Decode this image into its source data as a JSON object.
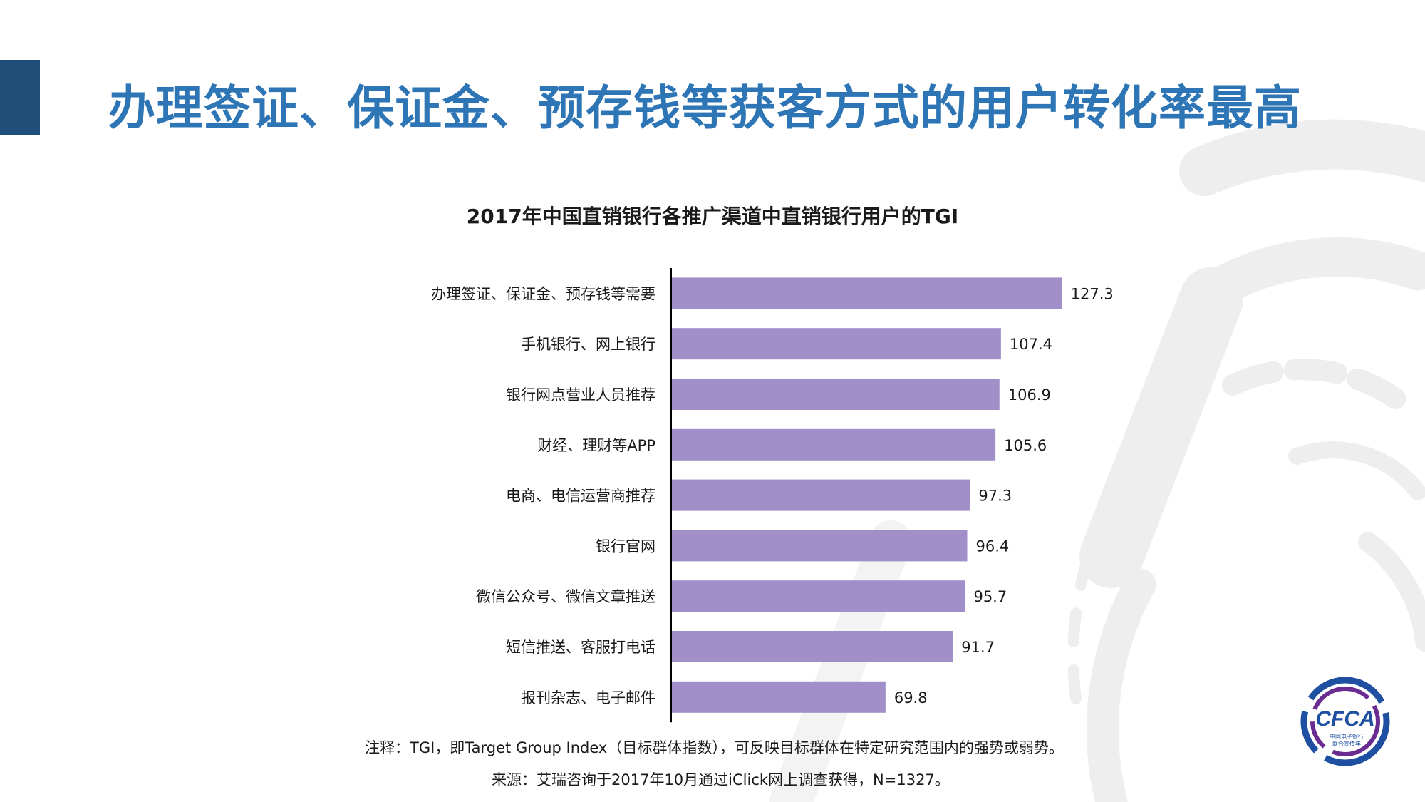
{
  "slide": {
    "title": "办理签证、保证金、预存钱等获客方式的用户转化率最高"
  },
  "chart_data": {
    "type": "bar",
    "orientation": "horizontal",
    "title": "2017年中国直销银行各推广渠道中直销银行用户的TGI",
    "categories": [
      "办理签证、保证金、预存钱等需要",
      "手机银行、网上银行",
      "银行网点营业人员推荐",
      "财经、理财等APP",
      "电商、电信运营商推荐",
      "银行官网",
      "微信公众号、微信文章推送",
      "短信推送、客服打电话",
      "报刊杂志、电子邮件"
    ],
    "values": [
      127.3,
      107.4,
      106.9,
      105.6,
      97.3,
      96.4,
      95.7,
      91.7,
      69.8
    ],
    "value_labels": [
      "127.3",
      "107.4",
      "106.9",
      "105.6",
      "97.3",
      "96.4",
      "95.7",
      "91.7",
      "69.8"
    ],
    "xlim": [
      0,
      140
    ],
    "bar_color": "#a08fc8",
    "grid": false,
    "axis_line": true
  },
  "footer": {
    "note": "注释：TGI，即Target Group Index（目标群体指数），可反映目标群体在特定研究范围内的强势或弱势。",
    "source": "来源：艾瑞咨询于2017年10月通过iClick网上调查获得，N=1327。"
  },
  "logo": {
    "text": "CFCA",
    "subtext_1": "中国电子银行",
    "subtext_2": "联合宣传年",
    "ring_colors": [
      "#1e4fa0",
      "#6a2c91"
    ]
  },
  "colors": {
    "accent": "#1f4e79",
    "title": "#2e75b6"
  }
}
